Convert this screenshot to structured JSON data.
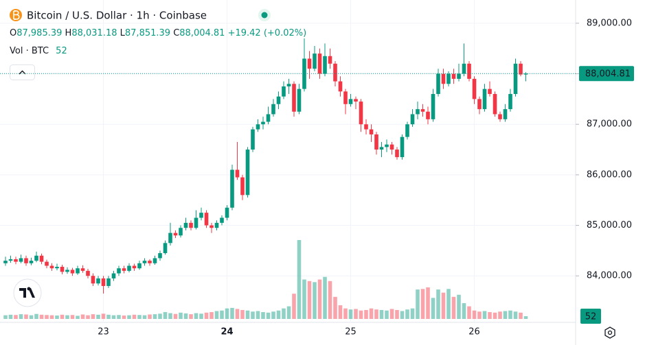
{
  "chart_data": {
    "type": "candlestick",
    "title": "Bitcoin / U.S. Dollar · 1h · Coinbase",
    "ohlc_keys": [
      "O",
      "H",
      "L",
      "C"
    ],
    "ohlc_labels": [
      "87,985.39",
      "88,031.18",
      "87,851.39",
      "88,004.81"
    ],
    "change_label": "+19.42 (+0.02%)",
    "volume_title": "Vol · BTC",
    "last_price_label": "88,004.81",
    "up_color": "#089981",
    "down_color": "#f23645",
    "categories": [
      null,
      null,
      null,
      null,
      null,
      null,
      null,
      null,
      null,
      null,
      null,
      null,
      null,
      null,
      null,
      null,
      null,
      null,
      null,
      "23",
      null,
      null,
      null,
      null,
      null,
      null,
      null,
      null,
      null,
      null,
      null,
      null,
      null,
      null,
      null,
      null,
      null,
      null,
      null,
      null,
      null,
      null,
      null,
      "24",
      null,
      null,
      null,
      null,
      null,
      null,
      null,
      null,
      null,
      null,
      null,
      null,
      null,
      null,
      null,
      null,
      null,
      null,
      null,
      null,
      null,
      null,
      null,
      "25",
      null,
      null,
      null,
      null,
      null,
      null,
      null,
      null,
      null,
      null,
      null,
      null,
      null,
      null,
      null,
      null,
      null,
      null,
      null,
      null,
      null,
      null,
      null,
      "26",
      null,
      null,
      null,
      null,
      null,
      null,
      null,
      null,
      null,
      null
    ],
    "open": [
      84250,
      84300,
      84330,
      84280,
      84350,
      84250,
      84300,
      84400,
      84280,
      84200,
      84150,
      84180,
      84080,
      84120,
      84050,
      84150,
      84100,
      84000,
      83850,
      83950,
      83800,
      83950,
      84050,
      84150,
      84100,
      84200,
      84150,
      84250,
      84300,
      84250,
      84350,
      84450,
      84650,
      84850,
      84800,
      84950,
      85050,
      84950,
      85150,
      85250,
      85000,
      84950,
      85050,
      85150,
      85350,
      86100,
      85950,
      85600,
      86500,
      86900,
      87000,
      87050,
      87200,
      87400,
      87550,
      87750,
      87800,
      87250,
      87700,
      88300,
      88100,
      88400,
      88000,
      88350,
      88200,
      87850,
      87650,
      87400,
      87500,
      87450,
      87000,
      86900,
      86800,
      86500,
      86550,
      86600,
      86500,
      86350,
      86750,
      87000,
      87200,
      87300,
      87250,
      87100,
      87600,
      88000,
      87800,
      88000,
      87900,
      88000,
      88200,
      87900,
      87500,
      87300,
      87700,
      87600,
      87200,
      87100,
      87300,
      87600,
      88200,
      87985.39
    ],
    "high": [
      84380,
      84400,
      84380,
      84420,
      84400,
      84360,
      84480,
      84440,
      84320,
      84250,
      84240,
      84220,
      84170,
      84160,
      84200,
      84210,
      84140,
      84050,
      84000,
      84000,
      84000,
      84100,
      84200,
      84200,
      84250,
      84240,
      84300,
      84350,
      84330,
      84400,
      84500,
      84700,
      85050,
      84900,
      85000,
      85150,
      85100,
      85300,
      85350,
      85300,
      85050,
      85100,
      85200,
      85400,
      86200,
      86650,
      86000,
      86550,
      86950,
      87100,
      87150,
      87350,
      87500,
      87650,
      87850,
      87900,
      87850,
      87800,
      88700,
      88450,
      88550,
      88500,
      88600,
      88500,
      88250,
      87950,
      87700,
      87600,
      87550,
      87500,
      87100,
      87000,
      86850,
      86650,
      86700,
      86650,
      86550,
      86800,
      87050,
      87300,
      87450,
      87400,
      87350,
      87700,
      88100,
      88100,
      88050,
      88100,
      88200,
      88600,
      88250,
      87950,
      87550,
      87800,
      87850,
      87650,
      87250,
      87400,
      87700,
      88300,
      88250,
      88031.18
    ],
    "low": [
      84200,
      84260,
      84230,
      84250,
      84200,
      84210,
      84270,
      84230,
      84150,
      84100,
      84110,
      84030,
      84040,
      84000,
      84020,
      84060,
      83950,
      83800,
      83810,
      83650,
      83760,
      83900,
      84000,
      84050,
      84070,
      84100,
      84120,
      84200,
      84200,
      84220,
      84300,
      84420,
      84600,
      84750,
      84760,
      84900,
      84900,
      84920,
      85100,
      84950,
      84850,
      84900,
      85000,
      85100,
      85300,
      85900,
      85500,
      85550,
      86450,
      86850,
      86900,
      87000,
      87150,
      87300,
      87500,
      87600,
      87150,
      87200,
      87650,
      87900,
      88050,
      87900,
      87950,
      88100,
      87750,
      87550,
      87200,
      87350,
      87300,
      86850,
      86800,
      86650,
      86400,
      86350,
      86450,
      86400,
      86300,
      86300,
      86700,
      86950,
      87100,
      87150,
      87000,
      87050,
      87550,
      87700,
      87750,
      87800,
      87850,
      87950,
      87850,
      87400,
      87200,
      87250,
      87550,
      87150,
      87050,
      87050,
      87250,
      87550,
      87950,
      87851.39
    ],
    "close": [
      84300,
      84330,
      84280,
      84350,
      84250,
      84300,
      84400,
      84280,
      84200,
      84150,
      84180,
      84080,
      84120,
      84050,
      84150,
      84100,
      84000,
      83850,
      83950,
      83800,
      83950,
      84050,
      84150,
      84100,
      84200,
      84150,
      84250,
      84300,
      84250,
      84350,
      84450,
      84650,
      84850,
      84800,
      84950,
      85050,
      84950,
      85150,
      85250,
      85000,
      84950,
      85050,
      85150,
      85350,
      86100,
      85950,
      85600,
      86500,
      86900,
      87000,
      87050,
      87200,
      87400,
      87550,
      87750,
      87800,
      87250,
      87700,
      88300,
      88100,
      88400,
      88000,
      88350,
      88200,
      87850,
      87650,
      87400,
      87500,
      87450,
      87000,
      86900,
      86800,
      86500,
      86550,
      86600,
      86500,
      86350,
      86750,
      87000,
      87200,
      87300,
      87250,
      87100,
      87600,
      88000,
      87800,
      88000,
      87900,
      88000,
      88200,
      87900,
      87500,
      87300,
      87700,
      87600,
      87200,
      87100,
      87300,
      87600,
      88200,
      87985.39,
      88004.81
    ],
    "volume": [
      70,
      80,
      75,
      90,
      85,
      70,
      95,
      80,
      75,
      70,
      65,
      80,
      70,
      75,
      60,
      85,
      70,
      90,
      80,
      100,
      80,
      70,
      75,
      65,
      70,
      80,
      75,
      70,
      85,
      90,
      100,
      130,
      110,
      95,
      120,
      105,
      90,
      110,
      100,
      120,
      130,
      150,
      160,
      200,
      210,
      190,
      170,
      160,
      140,
      150,
      130,
      120,
      140,
      160,
      200,
      240,
      480,
      1500,
      750,
      720,
      700,
      750,
      800,
      720,
      420,
      260,
      200,
      180,
      190,
      160,
      170,
      200,
      180,
      170,
      160,
      190,
      170,
      150,
      180,
      200,
      560,
      570,
      600,
      400,
      560,
      500,
      570,
      420,
      460,
      300,
      240,
      160,
      140,
      150,
      130,
      120,
      140,
      150,
      160,
      140,
      120,
      52
    ],
    "ylim": [
      83080,
      89460
    ],
    "yticks": [
      {
        "value": 84000,
        "label": "84,000.00"
      },
      {
        "value": 85000,
        "label": "85,000.00"
      },
      {
        "value": 86000,
        "label": "86,000.00"
      },
      {
        "value": 87000,
        "label": "87,000.00"
      },
      {
        "value": 88000,
        "label": "88,000.00"
      },
      {
        "value": 89000,
        "label": "89,000.00"
      }
    ],
    "grid": true
  }
}
